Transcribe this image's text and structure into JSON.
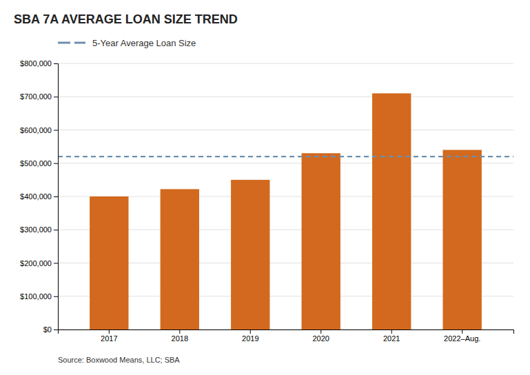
{
  "chart_data": {
    "type": "bar",
    "title": "SBA 7A AVERAGE LOAN SIZE TREND",
    "categories": [
      "2017",
      "2018",
      "2019",
      "2020",
      "2021",
      "2022–Aug."
    ],
    "values": [
      400000,
      422000,
      450000,
      530000,
      710000,
      540000
    ],
    "color": "#d2691e",
    "avg_line": {
      "name": "5-Year Average Loan Size",
      "value": 520000,
      "color": "#6e8fad",
      "line_style": "dashed"
    },
    "ylim": [
      0,
      800000
    ],
    "yticks": [
      {
        "value": 0,
        "label": "$0"
      },
      {
        "value": 100000,
        "label": "$100,000"
      },
      {
        "value": 200000,
        "label": "$200,000"
      },
      {
        "value": 300000,
        "label": "$300,000"
      },
      {
        "value": 400000,
        "label": "$400,000"
      },
      {
        "value": 500000,
        "label": "$500,000"
      },
      {
        "value": 600000,
        "label": "$600,000"
      },
      {
        "value": 700000,
        "label": "$700,000"
      },
      {
        "value": 800000,
        "label": "$800,000"
      }
    ],
    "grid": true,
    "source": "Source: Boxwood Means, LLC; SBA"
  }
}
